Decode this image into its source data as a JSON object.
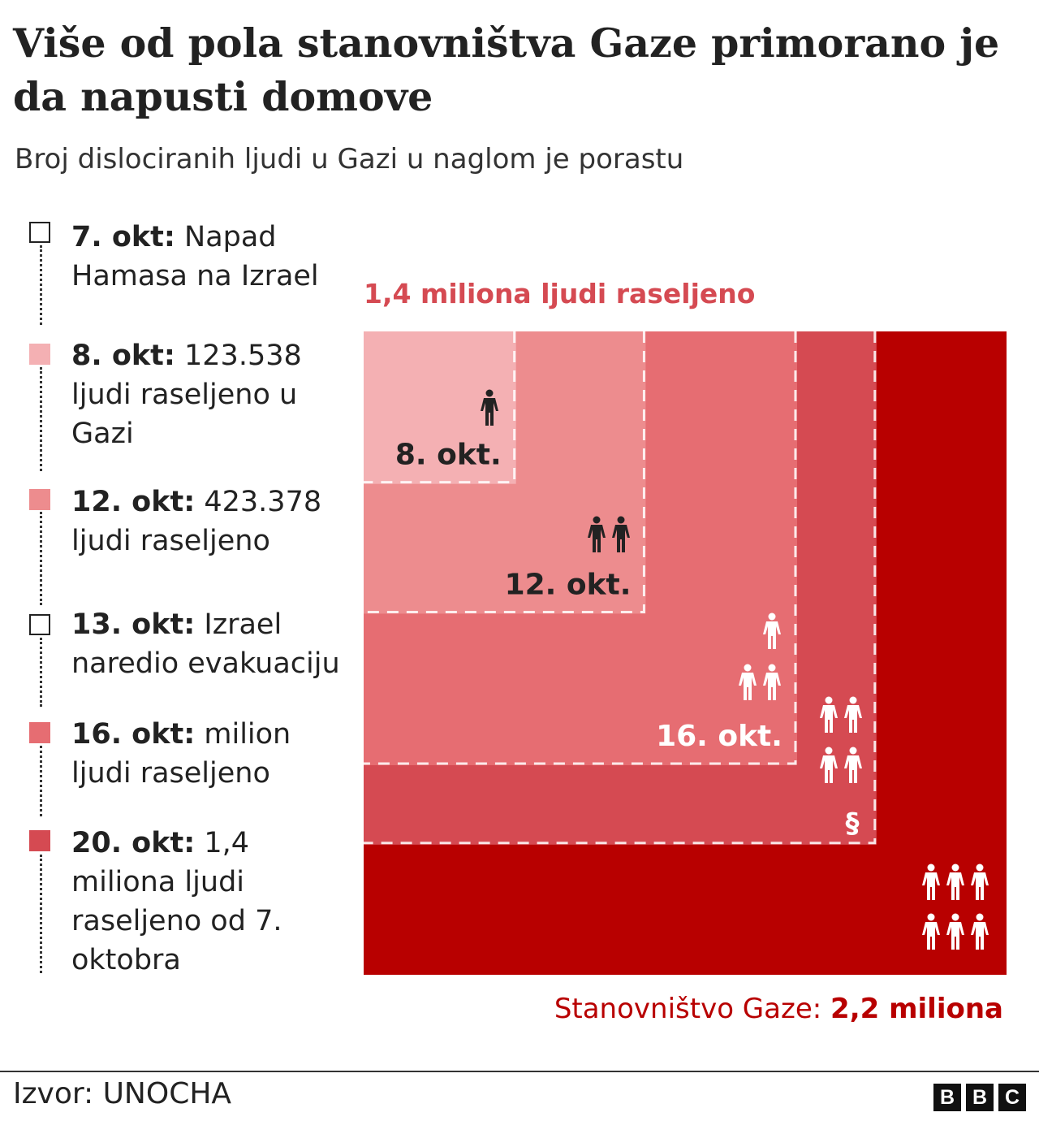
{
  "header": {
    "title": "Više od pola stanovništva Gaze primorano je da napusti domove",
    "subtitle": "Broj dislociranih ljudi u Gazi u naglom je porastu"
  },
  "legend": [
    {
      "date": "7. okt:",
      "text": " Napad Hamasa na Izrael",
      "color": "#ffffff"
    },
    {
      "date": "8. okt:",
      "text": " 123.538 ljudi raseljeno u Gazi",
      "color": "#f4b0b3"
    },
    {
      "date": "12. okt:",
      "text": " 423.378 ljudi raseljeno",
      "color": "#ed8c8e"
    },
    {
      "date": "13. okt:",
      "text": " Izrael naredio evakuaciju",
      "color": "#ffffff"
    },
    {
      "date": "16. okt:",
      "text": " milion ljudi raseljeno",
      "color": "#e66d72"
    },
    {
      "date": "20. okt:",
      "text": " 1,4 miliona ljudi raseljeno od 7. oktobra",
      "color": "#d54a52"
    }
  ],
  "chart_data": {
    "type": "area",
    "encoding": "nested squares, area proportional to value",
    "title": "1,4 miliona ljudi raseljeno",
    "total": {
      "label": "Stanovništvo Gaze:",
      "value_label": "2,2 miliona",
      "value": 2200000,
      "color": "#b80000"
    },
    "series": [
      {
        "label": "8. okt.",
        "value": 123538,
        "color": "#f4b0b3",
        "label_color": "#222222"
      },
      {
        "label": "12. okt.",
        "value": 423378,
        "color": "#ed8c8e",
        "label_color": "#222222"
      },
      {
        "label": "16. okt.",
        "value": 1000000,
        "color": "#e66d72",
        "label_color": "#ffffff"
      },
      {
        "label": "",
        "value": 1400000,
        "color": "#d54a52",
        "label_color": "#ffffff"
      }
    ],
    "icon": "person-icon",
    "annotation": "§"
  },
  "footer": {
    "source": "Izvor: UNOCHA",
    "logo": "BBC"
  }
}
